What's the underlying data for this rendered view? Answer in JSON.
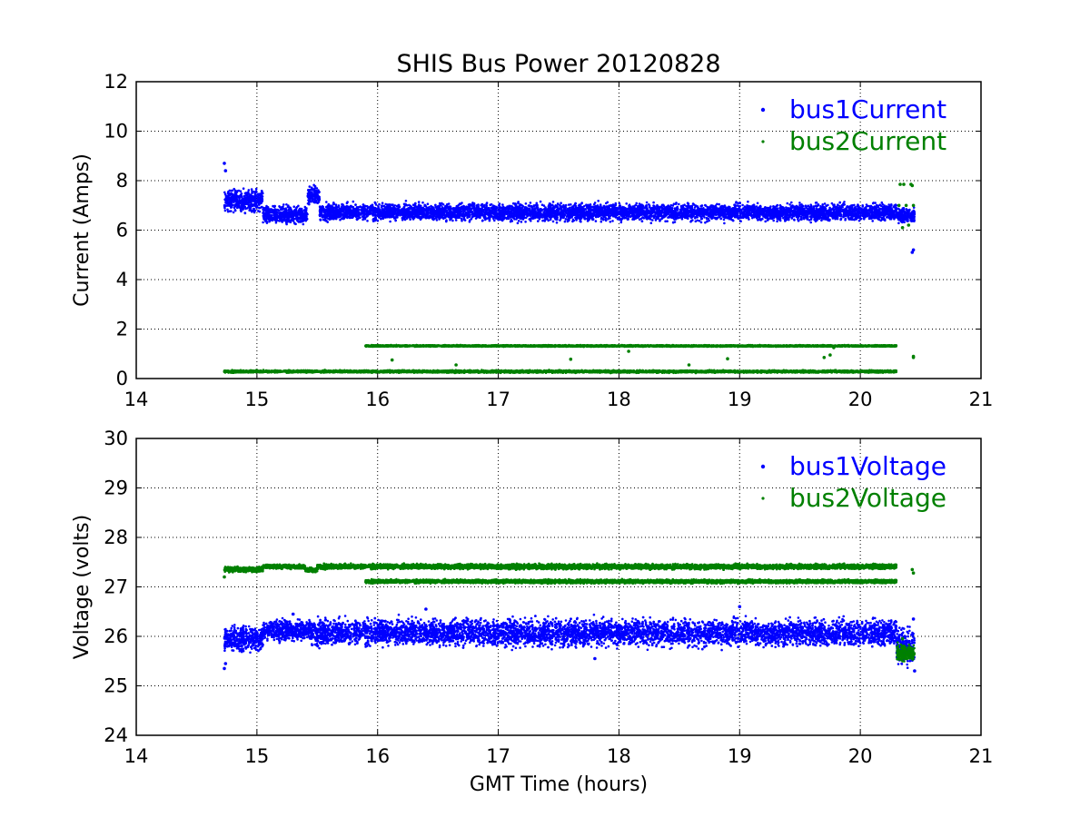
{
  "figure": {
    "title": "SHIS Bus Power 20120828"
  },
  "chart_data": [
    {
      "type": "scatter",
      "title": "SHIS Bus Power 20120828",
      "xlabel": "",
      "ylabel": "Current (Amps)",
      "xlim": [
        14,
        21
      ],
      "ylim": [
        0,
        12
      ],
      "xticks": [
        "14",
        "15",
        "16",
        "17",
        "18",
        "19",
        "20",
        "21"
      ],
      "yticks": [
        "0",
        "2",
        "4",
        "6",
        "8",
        "10",
        "12"
      ],
      "grid": true,
      "legend_position": "top-right",
      "series": [
        {
          "name": "bus1Current",
          "color": "#0000ff",
          "marker": "point",
          "bands": [
            {
              "x": [
                14.73,
                15.05
              ],
              "y": [
                6.6,
                7.8
              ]
            },
            {
              "x": [
                15.05,
                15.42
              ],
              "y": [
                6.1,
                7.1
              ]
            },
            {
              "x": [
                15.42,
                15.52
              ],
              "y": [
                6.9,
                7.9
              ]
            },
            {
              "x": [
                15.52,
                20.3
              ],
              "y": [
                6.25,
                7.2
              ]
            },
            {
              "x": [
                20.3,
                20.45
              ],
              "y": [
                6.2,
                7.0
              ]
            }
          ],
          "points": [
            {
              "x": 14.73,
              "y": 8.7
            },
            {
              "x": 14.74,
              "y": 8.4
            },
            {
              "x": 20.43,
              "y": 5.1
            },
            {
              "x": 20.44,
              "y": 5.2
            }
          ]
        },
        {
          "name": "bus2Current",
          "color": "#008000",
          "marker": "point",
          "bands": [
            {
              "x": [
                14.73,
                20.3
              ],
              "y": [
                0.22,
                0.35
              ]
            },
            {
              "x": [
                15.9,
                20.3
              ],
              "y": [
                1.28,
                1.36
              ]
            }
          ],
          "points": [
            {
              "x": 20.33,
              "y": 7.85
            },
            {
              "x": 20.36,
              "y": 7.85
            },
            {
              "x": 20.42,
              "y": 7.85
            },
            {
              "x": 20.43,
              "y": 7.8
            },
            {
              "x": 20.32,
              "y": 7.0
            },
            {
              "x": 20.38,
              "y": 7.0
            },
            {
              "x": 20.44,
              "y": 7.0
            },
            {
              "x": 20.4,
              "y": 6.2
            },
            {
              "x": 20.35,
              "y": 6.1
            },
            {
              "x": 20.44,
              "y": 0.9
            },
            {
              "x": 20.44,
              "y": 0.85
            },
            {
              "x": 16.12,
              "y": 0.75
            },
            {
              "x": 16.65,
              "y": 0.55
            },
            {
              "x": 17.6,
              "y": 0.78
            },
            {
              "x": 18.08,
              "y": 1.1
            },
            {
              "x": 18.58,
              "y": 0.55
            },
            {
              "x": 18.9,
              "y": 0.8
            },
            {
              "x": 19.7,
              "y": 0.85
            },
            {
              "x": 19.75,
              "y": 0.95
            },
            {
              "x": 19.78,
              "y": 1.25
            }
          ]
        }
      ]
    },
    {
      "type": "scatter",
      "title": "",
      "xlabel": "GMT Time (hours)",
      "ylabel": "Voltage (volts)",
      "xlim": [
        14,
        21
      ],
      "ylim": [
        24,
        30
      ],
      "xticks": [
        "14",
        "15",
        "16",
        "17",
        "18",
        "19",
        "20",
        "21"
      ],
      "yticks": [
        "24",
        "25",
        "26",
        "27",
        "28",
        "29",
        "30"
      ],
      "grid": true,
      "legend_position": "top-right",
      "series": [
        {
          "name": "bus1Voltage",
          "color": "#0000ff",
          "marker": "point",
          "bands": [
            {
              "x": [
                14.73,
                15.05
              ],
              "y": [
                25.6,
                26.3
              ]
            },
            {
              "x": [
                15.05,
                15.45
              ],
              "y": [
                25.85,
                26.4
              ]
            },
            {
              "x": [
                15.45,
                20.3
              ],
              "y": [
                25.7,
                26.45
              ]
            },
            {
              "x": [
                20.3,
                20.45
              ],
              "y": [
                25.3,
                26.3
              ]
            }
          ],
          "points": [
            {
              "x": 14.73,
              "y": 25.35
            },
            {
              "x": 14.74,
              "y": 25.45
            },
            {
              "x": 15.3,
              "y": 26.45
            },
            {
              "x": 16.4,
              "y": 26.55
            },
            {
              "x": 19.0,
              "y": 26.6
            },
            {
              "x": 17.8,
              "y": 25.55
            },
            {
              "x": 20.44,
              "y": 26.35
            },
            {
              "x": 20.45,
              "y": 25.3
            }
          ]
        },
        {
          "name": "bus2Voltage",
          "color": "#008000",
          "marker": "point",
          "bands": [
            {
              "x": [
                14.73,
                15.05
              ],
              "y": [
                27.28,
                27.42
              ]
            },
            {
              "x": [
                15.05,
                15.4
              ],
              "y": [
                27.35,
                27.47
              ]
            },
            {
              "x": [
                15.4,
                15.5
              ],
              "y": [
                27.28,
                27.4
              ]
            },
            {
              "x": [
                15.5,
                20.3
              ],
              "y": [
                27.34,
                27.48
              ]
            },
            {
              "x": [
                15.9,
                20.3
              ],
              "y": [
                27.06,
                27.16
              ]
            },
            {
              "x": [
                20.3,
                20.45
              ],
              "y": [
                25.45,
                25.9
              ]
            }
          ],
          "points": [
            {
              "x": 14.73,
              "y": 27.2
            },
            {
              "x": 20.43,
              "y": 27.35
            },
            {
              "x": 20.44,
              "y": 27.28
            },
            {
              "x": 20.35,
              "y": 25.95
            }
          ]
        }
      ]
    }
  ]
}
